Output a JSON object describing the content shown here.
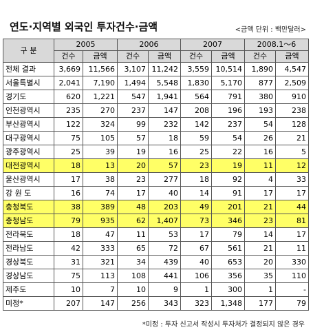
{
  "title": "연도·지역별 외국인 투자건수·금액",
  "unit_note": "<금액 단위 : 백만달러>",
  "table": {
    "corner": "구 분",
    "years": [
      "2005",
      "2006",
      "2007",
      "2008.1～6"
    ],
    "subheaders": [
      "건수",
      "금액",
      "건수",
      "금액",
      "건수",
      "금액",
      "건수",
      "금액"
    ],
    "rows": [
      [
        "전체 결과",
        "3,669",
        "11,566",
        "3,107",
        "11,242",
        "3,559",
        "10,514",
        "1,890",
        "4,547"
      ],
      [
        "서울특별시",
        "2,041",
        "7,190",
        "1,494",
        "5,548",
        "1,830",
        "5,170",
        "877",
        "2,509"
      ],
      [
        "경기도",
        "620",
        "1,221",
        "547",
        "1,941",
        "564",
        "791",
        "380",
        "910"
      ],
      [
        "인천광역시",
        "235",
        "270",
        "237",
        "147",
        "208",
        "196",
        "193",
        "238"
      ],
      [
        "부산광역시",
        "122",
        "324",
        "99",
        "232",
        "142",
        "237",
        "54",
        "128"
      ],
      [
        "대구광역시",
        "75",
        "105",
        "57",
        "18",
        "59",
        "54",
        "26",
        "21"
      ],
      [
        "광주광역시",
        "25",
        "39",
        "19",
        "16",
        "25",
        "22",
        "16",
        "5"
      ],
      [
        "대전광역시",
        "18",
        "13",
        "20",
        "57",
        "23",
        "19",
        "11",
        "12"
      ],
      [
        "울산광역시",
        "17",
        "38",
        "23",
        "277",
        "18",
        "92",
        "4",
        "33"
      ],
      [
        "강 원 도",
        "16",
        "74",
        "17",
        "40",
        "14",
        "91",
        "17",
        "17"
      ],
      [
        "충청북도",
        "38",
        "389",
        "48",
        "203",
        "49",
        "201",
        "21",
        "44"
      ],
      [
        "충청남도",
        "79",
        "935",
        "62",
        "1,407",
        "73",
        "346",
        "23",
        "81"
      ],
      [
        "전라북도",
        "18",
        "47",
        "11",
        "53",
        "17",
        "79",
        "14",
        "17"
      ],
      [
        "전라남도",
        "42",
        "333",
        "65",
        "72",
        "67",
        "561",
        "21",
        "11"
      ],
      [
        "경상북도",
        "31",
        "321",
        "34",
        "439",
        "40",
        "653",
        "20",
        "330"
      ],
      [
        "경상남도",
        "75",
        "113",
        "108",
        "441",
        "106",
        "356",
        "35",
        "110"
      ],
      [
        "제주도",
        "10",
        "7",
        "10",
        "9",
        "1",
        "300",
        "1",
        "-"
      ],
      [
        "미정*",
        "207",
        "147",
        "256",
        "343",
        "323",
        "1,348",
        "177",
        "79"
      ]
    ]
  },
  "footnote": "*미정 : 투자 신고서 작성시 투자처가 결정되지 않은 경우"
}
